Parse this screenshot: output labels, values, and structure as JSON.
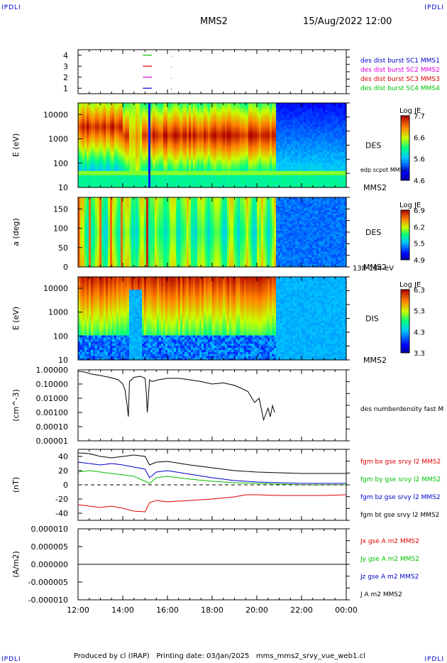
{
  "header": {
    "corner_left_top": "IPDLI",
    "corner_right_top": "IPDLI",
    "corner_left_bottom": "IPDLI",
    "corner_right_bottom": "IPDLI",
    "spacecraft": "MMS2",
    "date": "15/Aug/2022 12:00"
  },
  "footer": {
    "text": "Produced by cl (IRAP)   Printing date: 03/Jan/2025   mms_mms2_srvy_vue_web1.cl"
  },
  "colors": {
    "red": "#e00000",
    "green": "#00c000",
    "blue": "#0000cc",
    "magenta": "#e000e0",
    "black": "#000000"
  },
  "chart_data": [
    {
      "id": "availability",
      "type": "line",
      "yticks": [
        "1",
        "2",
        "3",
        "4"
      ],
      "legend": [
        {
          "label": "des dist burst SC1 MMS1",
          "color": "#0000cc"
        },
        {
          "label": "des dist burst SC2 MMS2",
          "color": "#e000e0"
        },
        {
          "label": "des dist burst SC3 MMS3",
          "color": "#e00000"
        },
        {
          "label": "des dist burst SC4 MMS4",
          "color": "#00c000"
        }
      ],
      "series": [
        {
          "row": 4,
          "color": "#00c000",
          "x_hours": [
            14.9,
            15.3
          ]
        },
        {
          "row": 3,
          "color": "#e00000",
          "x_hours": [
            14.9,
            15.3
          ]
        },
        {
          "row": 2,
          "color": "#e000e0",
          "x_hours": [
            14.9,
            15.3
          ]
        },
        {
          "row": 1,
          "color": "#0000cc",
          "x_hours": [
            14.9,
            15.3
          ]
        }
      ]
    },
    {
      "id": "des-energy-spectrogram",
      "type": "heatmap",
      "ylabel": "E (eV)",
      "yticks": [
        "10",
        "100",
        "1000",
        "10000"
      ],
      "ylim": [
        10,
        30000
      ],
      "yscale": "log",
      "right_labels": [
        "DES",
        "MMS2"
      ],
      "overlay_label": "edp scpot MMS2",
      "colorbar": {
        "title": "Log JE",
        "ticks": [
          "7.7",
          "6.6",
          "5.6",
          "4.6"
        ]
      }
    },
    {
      "id": "des-pitch-angle",
      "type": "heatmap",
      "ylabel": "a (deg)",
      "yticks": [
        "0",
        "50",
        "100",
        "150"
      ],
      "ylim": [
        0,
        180
      ],
      "right_labels": [
        "DES",
        "MMS2"
      ],
      "energy_range": "138-184 eV",
      "colorbar": {
        "title": "Log JE",
        "ticks": [
          "6.9",
          "6.2",
          "5.5",
          "4.9"
        ]
      }
    },
    {
      "id": "dis-energy-spectrogram",
      "type": "heatmap",
      "ylabel": "E (eV)",
      "yticks": [
        "10",
        "100",
        "1000",
        "10000"
      ],
      "ylim": [
        10,
        30000
      ],
      "yscale": "log",
      "right_labels": [
        "DIS",
        "MMS2"
      ],
      "colorbar": {
        "title": "Log JE",
        "ticks": [
          "6.3",
          "5.3",
          "4.3",
          "3.3"
        ]
      }
    },
    {
      "id": "number-density",
      "type": "line",
      "ylabel": "(cm^-3)",
      "yticks": [
        "0.00001",
        "0.00010",
        "0.00100",
        "0.01000",
        "0.10000",
        "1.00000"
      ],
      "ylim": [
        1e-05,
        1.0
      ],
      "yscale": "log",
      "series": [
        {
          "name": "des numberdensity fast M",
          "color": "#000000",
          "x_hours": [
            12.0,
            12.3,
            12.6,
            13.0,
            13.4,
            13.8,
            14.0,
            14.1,
            14.2,
            14.25,
            14.3,
            14.5,
            14.8,
            15.0,
            15.05,
            15.1,
            15.2,
            15.3,
            15.6,
            16.0,
            16.5,
            17.0,
            17.5,
            18.0,
            18.5,
            19.0,
            19.3,
            19.6,
            19.9,
            20.1,
            20.3,
            20.5,
            20.6,
            20.7,
            20.8
          ],
          "y": [
            0.8,
            0.7,
            0.5,
            0.4,
            0.3,
            0.2,
            0.1,
            0.04,
            0.003,
            0.0005,
            0.15,
            0.3,
            0.35,
            0.25,
            0.03,
            0.001,
            0.2,
            0.15,
            0.2,
            0.25,
            0.25,
            0.2,
            0.15,
            0.1,
            0.12,
            0.08,
            0.05,
            0.03,
            0.005,
            0.01,
            0.0003,
            0.002,
            0.0005,
            0.003,
            0.001
          ]
        }
      ]
    },
    {
      "id": "magnetic-field",
      "type": "line",
      "ylabel": "(nT)",
      "yticks": [
        "-40",
        "-20",
        "0",
        "20",
        "40"
      ],
      "ylim": [
        -50,
        50
      ],
      "series": [
        {
          "name": "fgm bx gse srvy l2 MMS2",
          "color": "#e00000",
          "x_hours": [
            12.0,
            12.5,
            13.0,
            13.5,
            14.0,
            14.5,
            15.0,
            15.2,
            15.5,
            16.0,
            17.0,
            18.0,
            19.0,
            19.5,
            20.0,
            21.0,
            22.0,
            23.0,
            24.0
          ],
          "y": [
            -28,
            -30,
            -32,
            -30,
            -33,
            -37,
            -38,
            -25,
            -22,
            -24,
            -22,
            -20,
            -17,
            -14,
            -14,
            -15,
            -15,
            -15,
            -14
          ]
        },
        {
          "name": "fgm by gse srvy l2 MMS2",
          "color": "#00c000",
          "x_hours": [
            12.0,
            12.5,
            13.0,
            13.5,
            14.0,
            14.5,
            15.0,
            15.2,
            15.5,
            16.0,
            17.0,
            18.0,
            19.0,
            20.0,
            21.0,
            22.0,
            23.0,
            24.0
          ],
          "y": [
            18,
            20,
            18,
            16,
            14,
            12,
            5,
            2,
            10,
            12,
            8,
            5,
            3,
            2,
            1,
            0,
            0,
            0
          ]
        },
        {
          "name": "fgm bz gse srvy l2 MMS2",
          "color": "#0000cc",
          "x_hours": [
            12.0,
            12.5,
            13.0,
            13.5,
            14.0,
            14.5,
            15.0,
            15.2,
            15.5,
            16.0,
            17.0,
            18.0,
            19.0,
            20.0,
            21.0,
            22.0,
            23.0,
            24.0
          ],
          "y": [
            32,
            30,
            28,
            30,
            28,
            25,
            22,
            10,
            18,
            20,
            15,
            10,
            6,
            4,
            3,
            2,
            2,
            2
          ]
        },
        {
          "name": "fgm bt gse srvy l2 MMS2",
          "color": "#000000",
          "x_hours": [
            12.0,
            12.5,
            13.0,
            13.5,
            14.0,
            14.5,
            15.0,
            15.2,
            15.5,
            16.0,
            17.0,
            18.0,
            19.0,
            20.0,
            21.0,
            22.0,
            23.0,
            24.0
          ],
          "y": [
            45,
            44,
            40,
            38,
            40,
            42,
            40,
            28,
            32,
            33,
            28,
            24,
            20,
            18,
            17,
            16,
            16,
            16
          ]
        }
      ]
    },
    {
      "id": "current-density",
      "type": "line",
      "ylabel": "(A/m2)",
      "yticks": [
        "0.000010",
        "0.000005",
        "0.000000",
        "-0.000005",
        "-0.000010"
      ],
      "ylim": [
        -1e-05,
        1e-05
      ],
      "series": [
        {
          "name": "Jx gse A m2 MMS2",
          "color": "#e00000"
        },
        {
          "name": "Jy gse A m2 MMS2",
          "color": "#00c000"
        },
        {
          "name": "Jz gse A m2 MMS2",
          "color": "#0000cc"
        },
        {
          "name": "J A m2 MMS2",
          "color": "#000000",
          "x_hours": [
            12.0,
            24.0
          ],
          "y": [
            0,
            0
          ]
        }
      ]
    }
  ],
  "xaxis": {
    "ticks": [
      "12:00",
      "14:00",
      "16:00",
      "18:00",
      "20:00",
      "22:00",
      "00:00"
    ],
    "range_hours": [
      12,
      24
    ]
  }
}
